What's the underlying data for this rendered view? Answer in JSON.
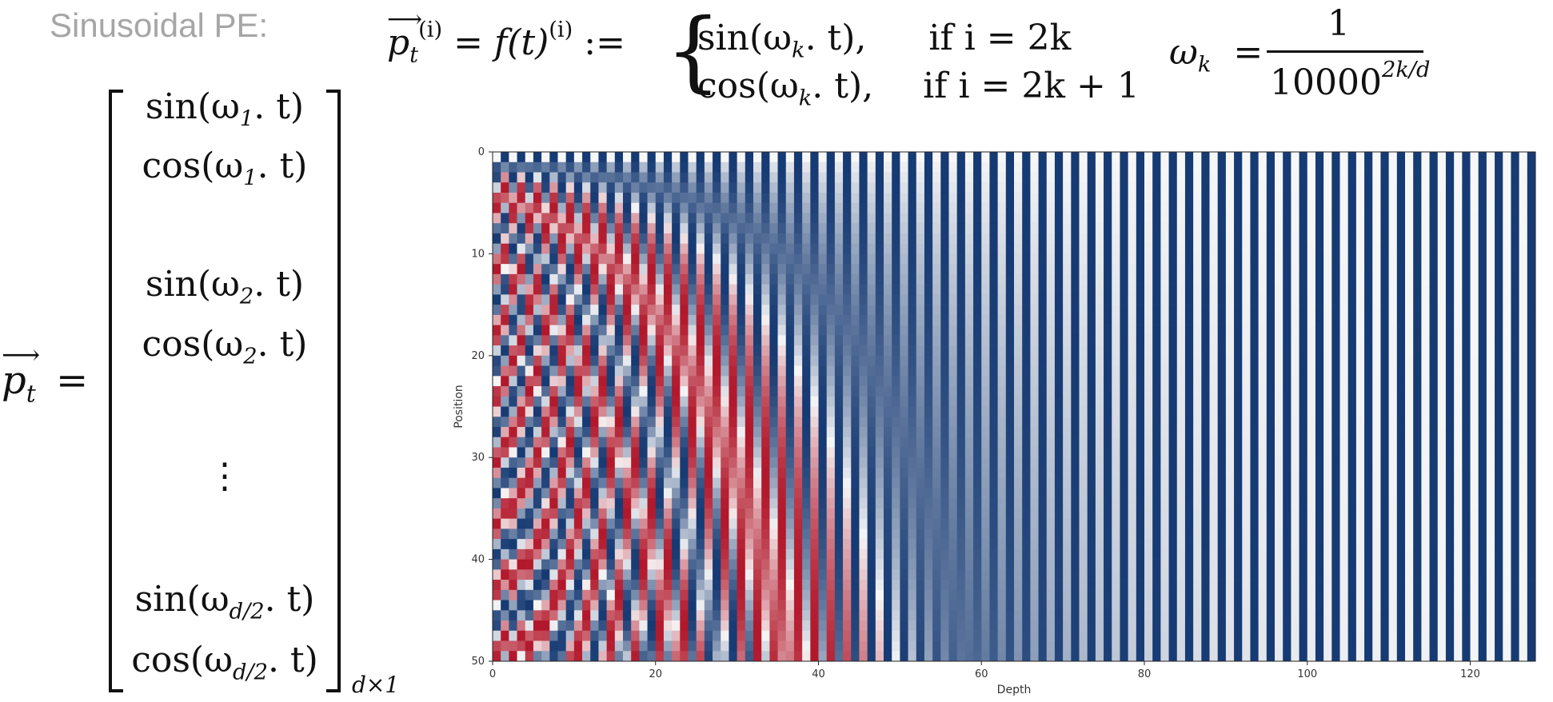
{
  "heading": "Sinusoidal PE:",
  "equation": {
    "lhs": "p",
    "lhs_sub": "t",
    "lhs_sup": "(i)",
    "eq1": "= f(t)",
    "eq1_sup": "(i)",
    "defs": ":=",
    "case1_expr": "sin(ω",
    "case1_sub": "k",
    "case1_tail": ". t),",
    "case1_cond": "if i = 2k",
    "case2_expr": "cos(ω",
    "case2_sub": "k",
    "case2_tail": ". t),",
    "case2_cond": "if i = 2k + 1"
  },
  "omega": {
    "lhs": "ω",
    "lhs_sub": "k",
    "eq": "=",
    "numerator": "1",
    "denominator": "10000",
    "denominator_sup": "2k/d"
  },
  "vector": {
    "lhs": "p",
    "lhs_sub": "t",
    "eq": "=",
    "entries": [
      {
        "fn": "sin(ω",
        "sub": "1",
        "tail": ". t)"
      },
      {
        "fn": "cos(ω",
        "sub": "1",
        "tail": ". t)"
      },
      {
        "fn": "sin(ω",
        "sub": "2",
        "tail": ". t)"
      },
      {
        "fn": "cos(ω",
        "sub": "2",
        "tail": ". t)"
      },
      {
        "fn": "⋮",
        "sub": "",
        "tail": ""
      },
      {
        "fn": "sin(ω",
        "sub": "d/2",
        "tail": ". t)"
      },
      {
        "fn": "cos(ω",
        "sub": "d/2",
        "tail": ". t)"
      }
    ],
    "dim": "d×1"
  },
  "chart_data": {
    "type": "heatmap",
    "function": "sinusoidal positional encoding: PE[pos, i] = sin(pos / 10000^(2k/d)) for i = 2k, cos(pos / 10000^(2k/d)) for i = 2k+1",
    "rows": 50,
    "cols": 128,
    "d_model": 128,
    "xlabel": "Depth",
    "ylabel": "Position",
    "xlim": [
      0,
      128
    ],
    "ylim": [
      50,
      0
    ],
    "xticks": [
      "0",
      "20",
      "40",
      "60",
      "80",
      "100",
      "120"
    ],
    "yticks": [
      "0",
      "10",
      "20",
      "30",
      "40",
      "50"
    ],
    "colormap": "RdBu",
    "value_range": [
      -1,
      1
    ],
    "colors": {
      "low": "#b2182b",
      "mid": "#f7f7f7",
      "high": "#163a73"
    }
  }
}
